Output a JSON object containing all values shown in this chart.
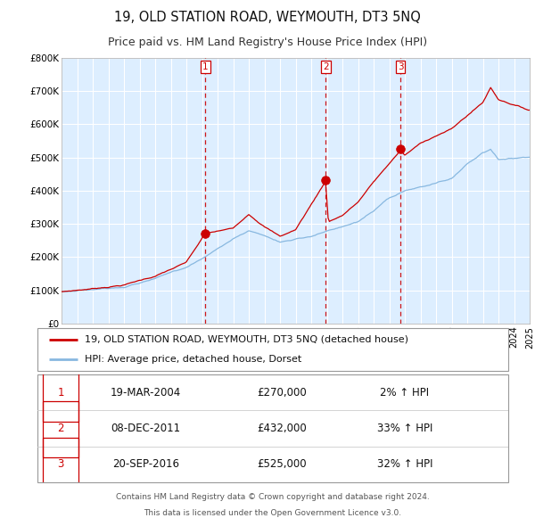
{
  "title": "19, OLD STATION ROAD, WEYMOUTH, DT3 5NQ",
  "subtitle": "Price paid vs. HM Land Registry's House Price Index (HPI)",
  "title_fontsize": 10.5,
  "subtitle_fontsize": 9,
  "ylim": [
    0,
    800000
  ],
  "yticks": [
    0,
    100000,
    200000,
    300000,
    400000,
    500000,
    600000,
    700000,
    800000
  ],
  "ytick_labels": [
    "£0",
    "£100K",
    "£200K",
    "£300K",
    "£400K",
    "£500K",
    "£600K",
    "£700K",
    "£800K"
  ],
  "hpi_color": "#88b8e0",
  "price_color": "#cc0000",
  "bg_color": "#ddeeff",
  "grid_color": "#ffffff",
  "vline_color": "#cc0000",
  "sale_dates": [
    2004.21,
    2011.93,
    2016.72
  ],
  "sale_prices": [
    270000,
    432000,
    525000
  ],
  "sale_labels": [
    "1",
    "2",
    "3"
  ],
  "sale_info": [
    {
      "num": "1",
      "date": "19-MAR-2004",
      "price": "£270,000",
      "pct": "2%",
      "dir": "↑"
    },
    {
      "num": "2",
      "date": "08-DEC-2011",
      "price": "£432,000",
      "pct": "33%",
      "dir": "↑"
    },
    {
      "num": "3",
      "date": "20-SEP-2016",
      "price": "£525,000",
      "pct": "32%",
      "dir": "↑"
    }
  ],
  "legend_line1": "19, OLD STATION ROAD, WEYMOUTH, DT3 5NQ (detached house)",
  "legend_line2": "HPI: Average price, detached house, Dorset",
  "footnote1": "Contains HM Land Registry data © Crown copyright and database right 2024.",
  "footnote2": "This data is licensed under the Open Government Licence v3.0.",
  "xstart": 1995,
  "xend": 2025,
  "hpi_pts_x": [
    1995,
    1997,
    1999,
    2001,
    2003,
    2004,
    2006,
    2007,
    2008,
    2009,
    2010,
    2011,
    2012,
    2013,
    2014,
    2015,
    2016,
    2017,
    2018,
    2019,
    2020,
    2021,
    2022,
    2022.5,
    2023,
    2024,
    2024.9
  ],
  "hpi_pts_y": [
    95000,
    103000,
    115000,
    140000,
    175000,
    200000,
    260000,
    285000,
    270000,
    250000,
    260000,
    270000,
    285000,
    295000,
    310000,
    340000,
    375000,
    395000,
    405000,
    415000,
    430000,
    475000,
    510000,
    520000,
    490000,
    495000,
    500000
  ],
  "price_pts_x": [
    1995,
    1997,
    1999,
    2001,
    2003,
    2004.21,
    2006,
    2007,
    2008,
    2009,
    2010,
    2011.93,
    2012.1,
    2013,
    2014,
    2015,
    2016.72,
    2017,
    2018,
    2019,
    2020,
    2021,
    2022,
    2022.5,
    2023,
    2024,
    2024.9
  ],
  "price_pts_y": [
    95000,
    105000,
    118000,
    145000,
    185000,
    270000,
    285000,
    330000,
    295000,
    265000,
    285000,
    432000,
    310000,
    330000,
    370000,
    430000,
    525000,
    510000,
    545000,
    570000,
    590000,
    630000,
    670000,
    715000,
    680000,
    665000,
    650000
  ]
}
